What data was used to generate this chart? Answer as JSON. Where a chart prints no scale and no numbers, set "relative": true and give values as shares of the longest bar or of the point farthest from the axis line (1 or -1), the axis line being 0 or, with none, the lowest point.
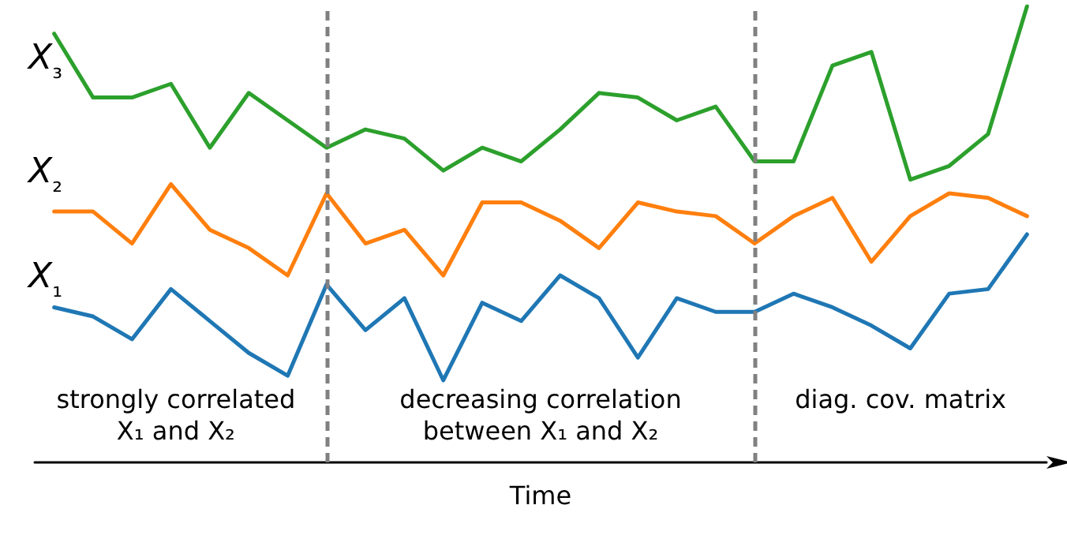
{
  "chart_data": {
    "type": "line",
    "relative": true,
    "xlabel": "Time",
    "grid": false,
    "legend": false,
    "marker": "none",
    "line_style": "solid",
    "categories": [
      null,
      null,
      null,
      null,
      null,
      null,
      null,
      null,
      null,
      null,
      null,
      null,
      null,
      null,
      null,
      null,
      null,
      null,
      null,
      null,
      null,
      null,
      null,
      null,
      null,
      null
    ],
    "series": [
      {
        "name": "X₁",
        "color": "#1f77b4",
        "values": [
          0.34,
          0.32,
          0.27,
          0.38,
          0.31,
          0.24,
          0.19,
          0.39,
          0.29,
          0.36,
          0.18,
          0.35,
          0.31,
          0.41,
          0.36,
          0.23,
          0.36,
          0.33,
          0.33,
          0.37,
          0.34,
          0.3,
          0.25,
          0.37,
          0.38,
          0.5
        ]
      },
      {
        "name": "X₂",
        "color": "#ff7f0e",
        "values": [
          0.55,
          0.55,
          0.48,
          0.61,
          0.51,
          0.47,
          0.41,
          0.59,
          0.48,
          0.51,
          0.41,
          0.57,
          0.57,
          0.53,
          0.47,
          0.57,
          0.55,
          0.54,
          0.48,
          0.54,
          0.58,
          0.44,
          0.54,
          0.59,
          0.58,
          0.54
        ]
      },
      {
        "name": "X₃",
        "color": "#2ca02c",
        "values": [
          0.94,
          0.8,
          0.8,
          0.83,
          0.69,
          0.81,
          0.75,
          0.69,
          0.73,
          0.71,
          0.64,
          0.69,
          0.66,
          0.73,
          0.81,
          0.8,
          0.75,
          0.78,
          0.66,
          0.66,
          0.87,
          0.9,
          0.62,
          0.65,
          0.72,
          1
        ]
      }
    ],
    "annotations": [
      "strongly correlated\nX₁ and X₂",
      "decreasing correlation\nbetween X₁ and X₂",
      "diag. cov. matrix"
    ]
  }
}
